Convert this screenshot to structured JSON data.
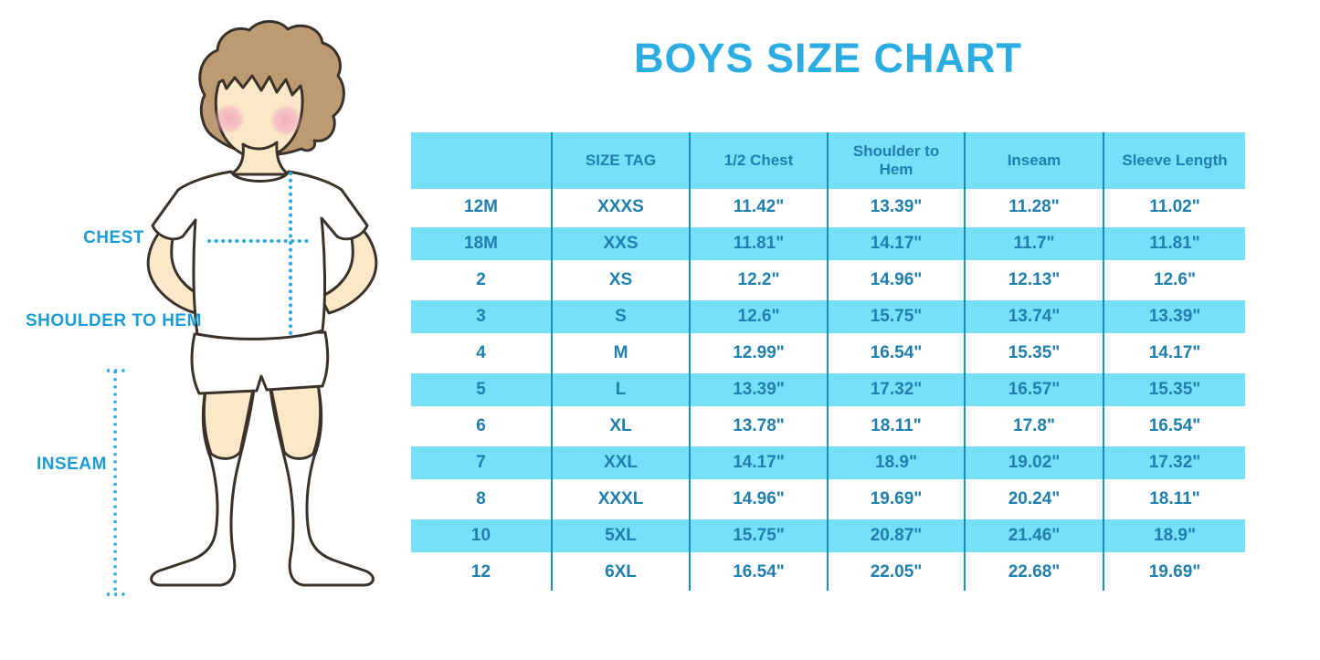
{
  "title": "BOYS SIZE CHART",
  "colors": {
    "accent_blue": "#2BACE2",
    "label_blue": "#1B9CD6",
    "band_blue": "#76DFFA",
    "table_text": "#1F7FAE",
    "grid_line": "#1A8FBE",
    "dotted_line": "#29ABE2",
    "skin": "#FBE8C8",
    "hair": "#BD9B72",
    "blush": "#F3ABBE",
    "outline": "#39322B"
  },
  "illustration": {
    "description": "cartoon boy in white t-shirt, shorts and knee socks with measurement guide lines",
    "labels": {
      "chest": "CHEST",
      "shoulder_to_hem": "SHOULDER TO HEM",
      "inseam": "INSEAM"
    }
  },
  "chart_data": {
    "type": "table",
    "title": "BOYS SIZE CHART",
    "headers": [
      "",
      "SIZE TAG",
      "1/2 Chest",
      "Shoulder to Hem",
      "Inseam",
      "Sleeve Length"
    ],
    "rows": [
      [
        "12M",
        "XXXS",
        "11.42\"",
        "13.39\"",
        "11.28\"",
        "11.02\""
      ],
      [
        "18M",
        "XXS",
        "11.81\"",
        "14.17\"",
        "11.7\"",
        "11.81\""
      ],
      [
        "2",
        "XS",
        "12.2\"",
        "14.96\"",
        "12.13\"",
        "12.6\""
      ],
      [
        "3",
        "S",
        "12.6\"",
        "15.75\"",
        "13.74\"",
        "13.39\""
      ],
      [
        "4",
        "M",
        "12.99\"",
        "16.54\"",
        "15.35\"",
        "14.17\""
      ],
      [
        "5",
        "L",
        "13.39\"",
        "17.32\"",
        "16.57\"",
        "15.35\""
      ],
      [
        "6",
        "XL",
        "13.78\"",
        "18.11\"",
        "17.8\"",
        "16.54\""
      ],
      [
        "7",
        "XXL",
        "14.17\"",
        "18.9\"",
        "19.02\"",
        "17.32\""
      ],
      [
        "8",
        "XXXL",
        "14.96\"",
        "19.69\"",
        "20.24\"",
        "18.11\""
      ],
      [
        "10",
        "5XL",
        "15.75\"",
        "20.87\"",
        "21.46\"",
        "18.9\""
      ],
      [
        "12",
        "6XL",
        "16.54\"",
        "22.05\"",
        "22.68\"",
        "19.69\""
      ]
    ]
  }
}
